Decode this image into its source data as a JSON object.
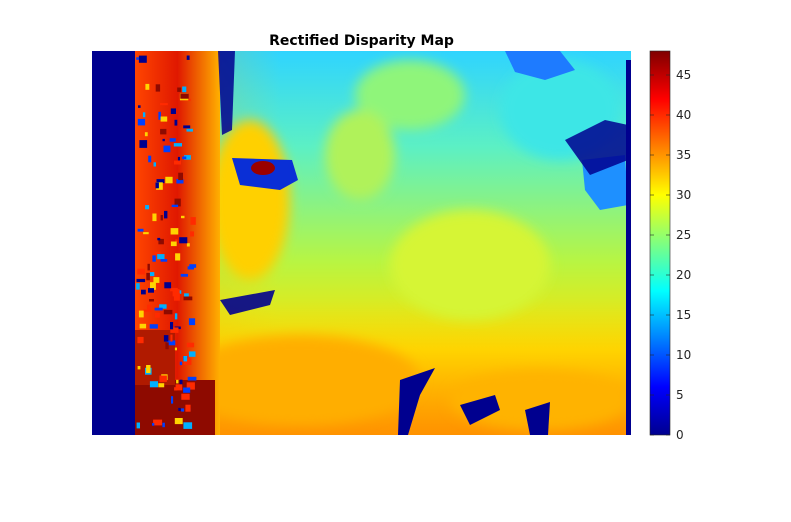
{
  "chart_data": {
    "type": "heatmap",
    "title": "Rectified Disparity Map",
    "colormap": "jet",
    "clim": [
      0,
      48
    ],
    "colorbar": {
      "ticks": [
        0,
        5,
        10,
        15,
        20,
        25,
        30,
        35,
        40,
        45
      ],
      "tick_labels": [
        "0",
        "5",
        "10",
        "15",
        "20",
        "25",
        "30",
        "35",
        "40",
        "45"
      ]
    },
    "axes_visible": false
  }
}
